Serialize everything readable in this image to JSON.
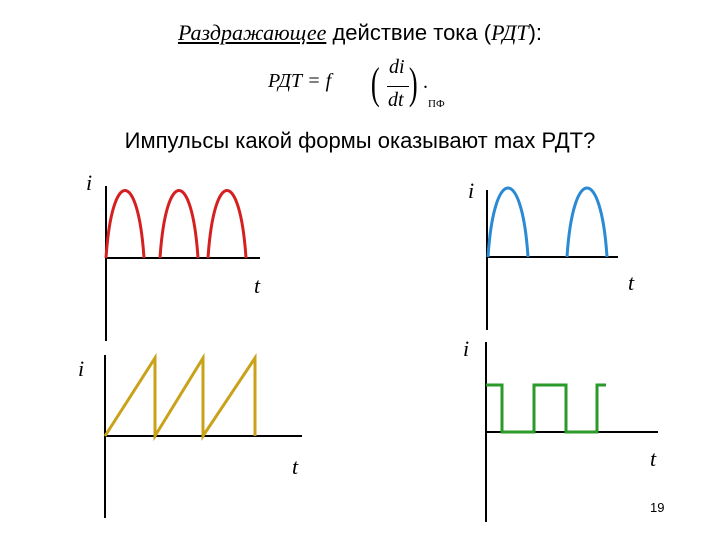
{
  "title": {
    "emph": "Раздражающее",
    "middle": " действие тока (",
    "abbr": "РДТ",
    "end": "):"
  },
  "formula": {
    "lhs": "РДТ = f",
    "numerator": "di",
    "denominator": "dt",
    "dot": ".",
    "subscript": "ПФ"
  },
  "question": "Импульсы какой формы оказывают max РДТ?",
  "graphs": {
    "top_left": {
      "y_label": "i",
      "x_label": "t",
      "waveform": "half-sine, 3 pulses",
      "color": "#d42020"
    },
    "top_right": {
      "y_label": "i",
      "x_label": "t",
      "waveform": "half-sine, 2 pulses with gaps",
      "color": "#2a8ad4"
    },
    "bottom_left": {
      "y_label": "i",
      "x_label": "t",
      "waveform": "sawtooth, 3 teeth",
      "color": "#c9a21a"
    },
    "bottom_right": {
      "y_label": "i",
      "x_label": "t",
      "waveform": "rectangular pulses",
      "color": "#2a9a2a"
    }
  },
  "page_number": "19"
}
